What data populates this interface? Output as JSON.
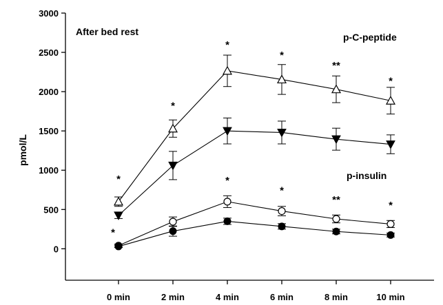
{
  "chart_data": {
    "type": "line",
    "annotation": "After bed rest",
    "ylabel": "pmol/L",
    "xlabel": "",
    "categories": [
      "0 min",
      "2 min",
      "4 min",
      "6 min",
      "8 min",
      "10 min"
    ],
    "ylim": [
      -400,
      3000
    ],
    "yticks": [
      0,
      500,
      1000,
      1500,
      2000,
      2500,
      3000
    ],
    "group_labels": [
      "p-C-peptide",
      "p-insulin"
    ],
    "series": [
      {
        "marker": "open-triangle-up",
        "color": "#000000",
        "values": [
          600,
          1530,
          2265,
          2155,
          2030,
          1885
        ],
        "errors": [
          60,
          110,
          200,
          190,
          170,
          170
        ]
      },
      {
        "marker": "filled-triangle-down",
        "color": "#000000",
        "values": [
          425,
          1060,
          1500,
          1480,
          1395,
          1330
        ],
        "errors": [
          40,
          180,
          165,
          145,
          140,
          120
        ]
      },
      {
        "marker": "open-circle",
        "color": "#000000",
        "values": [
          40,
          345,
          600,
          480,
          380,
          315
        ],
        "errors": [
          20,
          60,
          75,
          60,
          50,
          45
        ]
      },
      {
        "marker": "filled-circle",
        "color": "#000000",
        "values": [
          30,
          225,
          350,
          285,
          220,
          175
        ],
        "errors": [
          15,
          65,
          40,
          35,
          30,
          25
        ]
      }
    ],
    "significance": [
      {
        "category": "0 min",
        "label": "*",
        "value": 890
      },
      {
        "category": "2 min",
        "label": "*",
        "value": 1820
      },
      {
        "category": "4 min",
        "label": "*",
        "value": 2595
      },
      {
        "category": "6 min",
        "label": "*",
        "value": 2465
      },
      {
        "category": "8 min",
        "label": "**",
        "value": 2335
      },
      {
        "category": "10 min",
        "label": "*",
        "value": 2135
      },
      {
        "category": "0 min",
        "label": "*",
        "value": 210
      },
      {
        "category": "4 min",
        "label": "*",
        "value": 870
      },
      {
        "category": "6 min",
        "label": "*",
        "value": 745
      },
      {
        "category": "8 min",
        "label": "**",
        "value": 625
      },
      {
        "category": "10 min",
        "label": "*",
        "value": 555
      }
    ]
  }
}
